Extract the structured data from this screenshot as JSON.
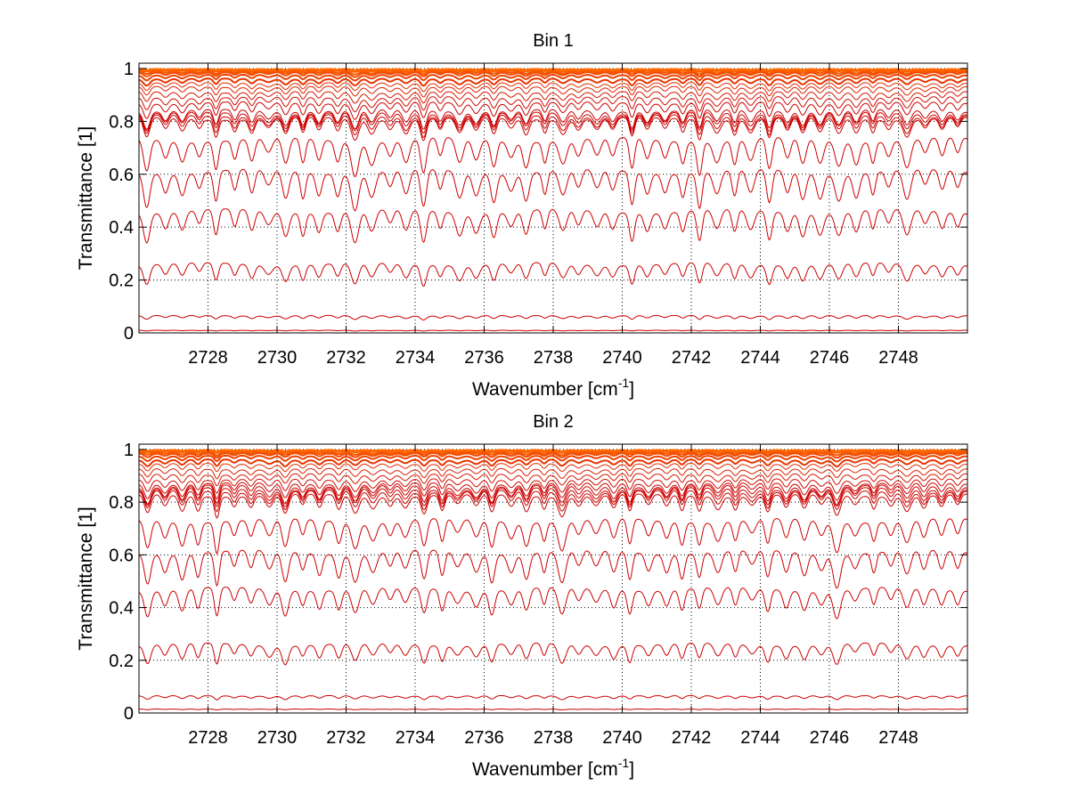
{
  "chart_data": [
    {
      "type": "line",
      "title": "Bin 1",
      "xlabel": "Wavenumber [cm",
      "xlabel_sup": "-1",
      "xlabel_end": "]",
      "ylabel": "Transmittance [1]",
      "xlim": [
        2726,
        2750
      ],
      "ylim": [
        0,
        1.02
      ],
      "xticks": [
        2728,
        2730,
        2732,
        2734,
        2736,
        2738,
        2740,
        2742,
        2744,
        2746,
        2748
      ],
      "yticks": [
        0,
        0.2,
        0.4,
        0.6,
        0.8,
        1
      ],
      "ytick_labels": [
        "0",
        "0.2",
        "0.4",
        "0.6",
        "0.8",
        "1"
      ],
      "grid": true,
      "line_spacing_cm1": 0.5,
      "series_baseline": [
        0.998,
        0.995,
        0.99,
        0.985,
        0.975,
        0.96,
        0.945,
        0.93,
        0.91,
        0.89,
        0.87,
        0.84,
        0.83,
        0.82,
        0.81,
        0.73,
        0.61,
        0.46,
        0.26,
        0.065,
        0.01
      ],
      "series_dip_depth": [
        0.004,
        0.008,
        0.012,
        0.016,
        0.02,
        0.025,
        0.03,
        0.035,
        0.04,
        0.05,
        0.06,
        0.07,
        0.07,
        0.075,
        0.08,
        0.13,
        0.14,
        0.12,
        0.08,
        0.015,
        0.003
      ],
      "colors": {
        "strong": "#cc0000",
        "weak": "#ff6a00"
      }
    },
    {
      "type": "line",
      "title": "Bin 2",
      "xlabel": "Wavenumber [cm",
      "xlabel_sup": "-1",
      "xlabel_end": "]",
      "ylabel": "Transmittance [1]",
      "xlim": [
        2726,
        2750
      ],
      "ylim": [
        0,
        1.02
      ],
      "xticks": [
        2728,
        2730,
        2732,
        2734,
        2736,
        2738,
        2740,
        2742,
        2744,
        2746,
        2748
      ],
      "yticks": [
        0,
        0.2,
        0.4,
        0.6,
        0.8,
        1
      ],
      "ytick_labels": [
        "0",
        "0.2",
        "0.4",
        "0.6",
        "0.8",
        "1"
      ],
      "grid": true,
      "line_spacing_cm1": 0.5,
      "series_baseline": [
        0.998,
        0.995,
        0.99,
        0.985,
        0.975,
        0.96,
        0.945,
        0.925,
        0.905,
        0.885,
        0.87,
        0.86,
        0.85,
        0.84,
        0.825,
        0.73,
        0.61,
        0.47,
        0.26,
        0.065,
        0.015
      ],
      "series_dip_depth": [
        0.004,
        0.008,
        0.012,
        0.016,
        0.02,
        0.025,
        0.03,
        0.035,
        0.04,
        0.05,
        0.06,
        0.07,
        0.07,
        0.075,
        0.08,
        0.12,
        0.13,
        0.11,
        0.08,
        0.015,
        0.003
      ],
      "colors": {
        "strong": "#cc0000",
        "weak": "#ff6a00"
      }
    }
  ]
}
